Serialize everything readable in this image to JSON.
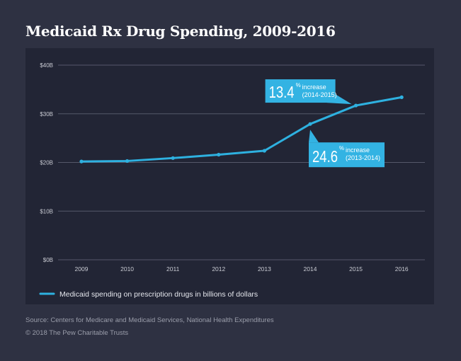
{
  "title": "Medicaid Rx Drug Spending, 2009-2016",
  "footer": {
    "source": "Source: Centers for Medicare and Medicaid Services, National Health Expenditures",
    "copyright": "© 2018 The Pew Charitable Trusts"
  },
  "colors": {
    "background": "#2e3142",
    "panel": "#222535",
    "line": "#2eb1e0",
    "callout": "#33b3e3",
    "grid": "#55586a"
  },
  "chart_data": {
    "type": "line",
    "title": "Medicaid Rx Drug Spending, 2009-2016",
    "xlabel": "",
    "ylabel": "",
    "x": [
      "2009",
      "2010",
      "2011",
      "2012",
      "2013",
      "2014",
      "2015",
      "2016"
    ],
    "series": [
      {
        "name": "Medicaid spending on prescription drugs in billions of dollars",
        "values": [
          20.2,
          20.3,
          20.9,
          21.6,
          22.4,
          27.9,
          31.7,
          33.4
        ]
      }
    ],
    "ylim": [
      0,
      40
    ],
    "yticks": [
      0,
      10,
      20,
      30,
      40
    ],
    "ytick_labels": [
      "$0B",
      "$10B",
      "$20B",
      "$30B",
      "$40B"
    ],
    "grid": true,
    "legend": "bottom-left",
    "annotations": [
      {
        "value": "13.4",
        "unit": "%",
        "line1": "increase",
        "line2": "(2014-2015)",
        "points_to": "2015",
        "placement": "above-left"
      },
      {
        "value": "24.6",
        "unit": "%",
        "line1": "increase",
        "line2": "(2013-2014)",
        "points_to": "2014",
        "placement": "below-right"
      }
    ]
  }
}
